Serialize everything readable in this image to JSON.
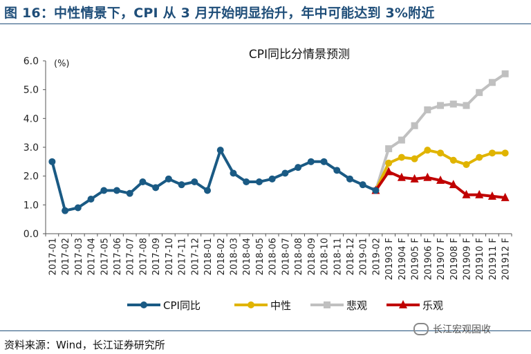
{
  "figure_title": "图 16：中性情景下，CPI 从 3 月开始明显抬升，年中可能达到 3%附近",
  "source": "资料来源：Wind，长江证券研究所",
  "watermark": "长江宏观固收",
  "chart_data": {
    "type": "line",
    "title": "CPI同比分情景预测",
    "ylabel": "(%)",
    "xlabel": "",
    "ylim": [
      0,
      6
    ],
    "yticks": [
      0.0,
      1.0,
      2.0,
      3.0,
      4.0,
      5.0,
      6.0
    ],
    "grid": false,
    "legend_position": "bottom",
    "categories": [
      "2017-01",
      "2017-02",
      "2017-03",
      "2017-04",
      "2017-05",
      "2017-06",
      "2017-07",
      "2017-08",
      "2017-09",
      "2017-10",
      "2017-11",
      "2017-12",
      "2018-01",
      "2018-02",
      "2018-03",
      "2018-04",
      "2018-05",
      "2018-06",
      "2018-07",
      "2018-08",
      "2018-09",
      "2018-10",
      "2018-11",
      "2018-12",
      "2019-01",
      "2019-02",
      "201903 F",
      "201904 F",
      "201905 F",
      "201906 F",
      "201907 F",
      "201908 F",
      "201909 F",
      "201910 F",
      "201911 F",
      "201912 F"
    ],
    "series": [
      {
        "name": "CPI同比",
        "color": "#1a5a84",
        "marker": "circle",
        "values": [
          2.5,
          0.8,
          0.9,
          1.2,
          1.5,
          1.5,
          1.4,
          1.8,
          1.6,
          1.9,
          1.7,
          1.8,
          1.5,
          2.9,
          2.1,
          1.8,
          1.8,
          1.9,
          2.1,
          2.3,
          2.5,
          2.5,
          2.2,
          1.9,
          1.7,
          1.5,
          null,
          null,
          null,
          null,
          null,
          null,
          null,
          null,
          null,
          null
        ]
      },
      {
        "name": "中性",
        "color": "#e0b400",
        "marker": "circle",
        "values": [
          null,
          null,
          null,
          null,
          null,
          null,
          null,
          null,
          null,
          null,
          null,
          null,
          null,
          null,
          null,
          null,
          null,
          null,
          null,
          null,
          null,
          null,
          null,
          null,
          null,
          1.5,
          2.45,
          2.65,
          2.6,
          2.9,
          2.8,
          2.55,
          2.4,
          2.65,
          2.8,
          2.8
        ]
      },
      {
        "name": "悲观",
        "color": "#c0c0c0",
        "marker": "square",
        "values": [
          null,
          null,
          null,
          null,
          null,
          null,
          null,
          null,
          null,
          null,
          null,
          null,
          null,
          null,
          null,
          null,
          null,
          null,
          null,
          null,
          null,
          null,
          null,
          null,
          null,
          1.5,
          2.95,
          3.25,
          3.75,
          4.3,
          4.45,
          4.5,
          4.45,
          4.9,
          5.25,
          5.55
        ]
      },
      {
        "name": "乐观",
        "color": "#c00000",
        "marker": "triangle",
        "values": [
          null,
          null,
          null,
          null,
          null,
          null,
          null,
          null,
          null,
          null,
          null,
          null,
          null,
          null,
          null,
          null,
          null,
          null,
          null,
          null,
          null,
          null,
          null,
          null,
          null,
          1.5,
          2.15,
          1.95,
          1.9,
          1.95,
          1.85,
          1.7,
          1.35,
          1.35,
          1.3,
          1.25
        ]
      }
    ]
  }
}
